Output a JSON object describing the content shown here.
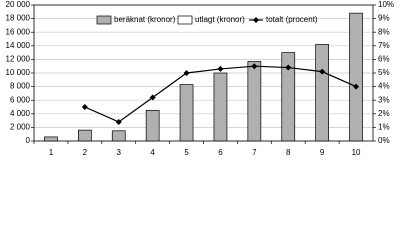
{
  "chart_data": {
    "type": "bar",
    "categories": [
      "1",
      "2",
      "3",
      "4",
      "5",
      "6",
      "7",
      "8",
      "9",
      "10"
    ],
    "series": [
      {
        "name": "beräknat (kronor)",
        "type": "bar",
        "color": "#b0b0b0",
        "values": [
          600,
          1600,
          1500,
          4500,
          8300,
          10000,
          11700,
          13000,
          14200,
          18800
        ]
      },
      {
        "name": "utlagt (kronor)",
        "type": "bar",
        "color": "#ffffff",
        "values": [
          null,
          null,
          null,
          null,
          null,
          null,
          null,
          null,
          null,
          null
        ]
      },
      {
        "name": "totalt (procent)",
        "type": "line",
        "axis": "y2",
        "color": "#000000",
        "values": [
          null,
          2.5,
          1.4,
          3.2,
          5.0,
          5.3,
          5.5,
          5.4,
          5.1,
          4.0
        ]
      }
    ],
    "ylim": [
      0,
      20000
    ],
    "yticks": [
      0,
      {
        "value": 2000,
        "label": "2 000"
      },
      {
        "value": 4000,
        "label": "4 000"
      },
      {
        "value": 6000,
        "label": "6 000"
      },
      {
        "value": 8000,
        "label": "8 000"
      },
      {
        "value": 10000,
        "label": "10 000"
      },
      {
        "value": 12000,
        "label": "12 000"
      },
      {
        "value": 14000,
        "label": "14 000"
      },
      {
        "value": 16000,
        "label": "16 000"
      },
      {
        "value": 18000,
        "label": "18 000"
      },
      {
        "value": 20000,
        "label": "20 000"
      }
    ],
    "y2lim": [
      0,
      10
    ],
    "y2ticks": [
      {
        "value": 0,
        "label": "0%"
      },
      {
        "value": 1,
        "label": "1%"
      },
      {
        "value": 2,
        "label": "2%"
      },
      {
        "value": 3,
        "label": "3%"
      },
      {
        "value": 4,
        "label": "4%"
      },
      {
        "value": 5,
        "label": "5%"
      },
      {
        "value": 6,
        "label": "6%"
      },
      {
        "value": 7,
        "label": "7%"
      },
      {
        "value": 8,
        "label": "8%"
      },
      {
        "value": 9,
        "label": "9%"
      },
      {
        "value": 10,
        "label": "10%"
      }
    ],
    "grid": true
  }
}
